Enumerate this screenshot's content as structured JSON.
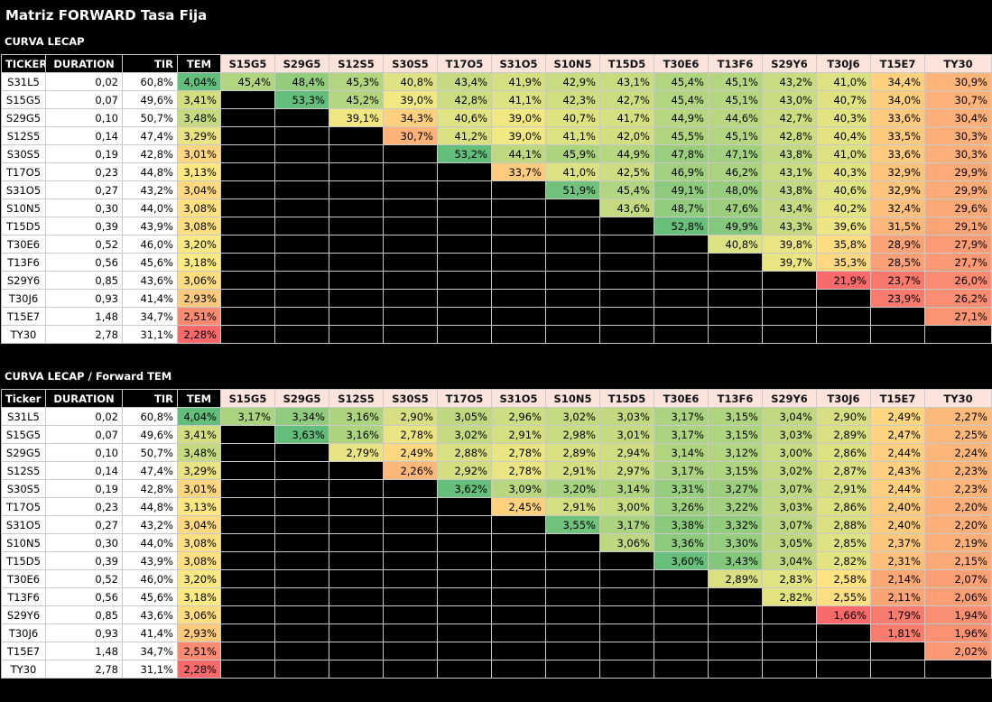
{
  "title": "Matriz FORWARD Tasa Fija",
  "columns": [
    "S15G5",
    "S29G5",
    "S12S5",
    "S30S5",
    "T17O5",
    "S31O5",
    "S10N5",
    "T15D5",
    "T30E6",
    "T13F6",
    "S29Y6",
    "T30J6",
    "T15E7",
    "TY30"
  ],
  "sections": [
    {
      "label": "CURVA LECAP",
      "headers": {
        "ticker": "TICKER",
        "duration": "DURATION",
        "tir": "TIR",
        "tem": "TEM"
      },
      "rows": [
        {
          "ticker": "S31L5",
          "duration": "0,02",
          "tir": "60,8%",
          "tem": "4,04%",
          "values": [
            "45,4%",
            "48,4%",
            "45,3%",
            "40,8%",
            "43,4%",
            "41,9%",
            "42,9%",
            "43,1%",
            "45,4%",
            "45,1%",
            "43,2%",
            "41,0%",
            "34,4%",
            "30,9%"
          ]
        },
        {
          "ticker": "S15G5",
          "duration": "0,07",
          "tir": "49,6%",
          "tem": "3,41%",
          "values": [
            "",
            "53,3%",
            "45,2%",
            "39,0%",
            "42,8%",
            "41,1%",
            "42,3%",
            "42,7%",
            "45,4%",
            "45,1%",
            "43,0%",
            "40,7%",
            "34,0%",
            "30,7%"
          ]
        },
        {
          "ticker": "S29G5",
          "duration": "0,10",
          "tir": "50,7%",
          "tem": "3,48%",
          "values": [
            "",
            "",
            "39,1%",
            "34,3%",
            "40,6%",
            "39,0%",
            "40,7%",
            "41,7%",
            "44,9%",
            "44,6%",
            "42,7%",
            "40,3%",
            "33,6%",
            "30,4%"
          ]
        },
        {
          "ticker": "S12S5",
          "duration": "0,14",
          "tir": "47,4%",
          "tem": "3,29%",
          "values": [
            "",
            "",
            "",
            "30,7%",
            "41,2%",
            "39,0%",
            "41,1%",
            "42,0%",
            "45,5%",
            "45,1%",
            "42,8%",
            "40,4%",
            "33,5%",
            "30,3%"
          ]
        },
        {
          "ticker": "S30S5",
          "duration": "0,19",
          "tir": "42,8%",
          "tem": "3,01%",
          "values": [
            "",
            "",
            "",
            "",
            "53,2%",
            "44,1%",
            "45,9%",
            "44,9%",
            "47,8%",
            "47,1%",
            "43,8%",
            "41,0%",
            "33,6%",
            "30,3%"
          ]
        },
        {
          "ticker": "T17O5",
          "duration": "0,23",
          "tir": "44,8%",
          "tem": "3,13%",
          "values": [
            "",
            "",
            "",
            "",
            "",
            "33,7%",
            "41,0%",
            "42,5%",
            "46,9%",
            "46,2%",
            "43,1%",
            "40,3%",
            "32,9%",
            "29,9%"
          ]
        },
        {
          "ticker": "S31O5",
          "duration": "0,27",
          "tir": "43,2%",
          "tem": "3,04%",
          "values": [
            "",
            "",
            "",
            "",
            "",
            "",
            "51,9%",
            "45,4%",
            "49,1%",
            "48,0%",
            "43,8%",
            "40,6%",
            "32,9%",
            "29,9%"
          ]
        },
        {
          "ticker": "S10N5",
          "duration": "0,30",
          "tir": "44,0%",
          "tem": "3,08%",
          "values": [
            "",
            "",
            "",
            "",
            "",
            "",
            "",
            "43,6%",
            "48,7%",
            "47,6%",
            "43,4%",
            "40,2%",
            "32,4%",
            "29,6%"
          ]
        },
        {
          "ticker": "T15D5",
          "duration": "0,39",
          "tir": "43,9%",
          "tem": "3,08%",
          "values": [
            "",
            "",
            "",
            "",
            "",
            "",
            "",
            "",
            "52,8%",
            "49,9%",
            "43,3%",
            "39,6%",
            "31,5%",
            "29,1%"
          ]
        },
        {
          "ticker": "T30E6",
          "duration": "0,52",
          "tir": "46,0%",
          "tem": "3,20%",
          "values": [
            "",
            "",
            "",
            "",
            "",
            "",
            "",
            "",
            "",
            "40,8%",
            "39,8%",
            "35,8%",
            "28,9%",
            "27,9%"
          ]
        },
        {
          "ticker": "T13F6",
          "duration": "0,56",
          "tir": "45,6%",
          "tem": "3,18%",
          "values": [
            "",
            "",
            "",
            "",
            "",
            "",
            "",
            "",
            "",
            "",
            "39,7%",
            "35,3%",
            "28,5%",
            "27,7%"
          ]
        },
        {
          "ticker": "S29Y6",
          "duration": "0,85",
          "tir": "43,6%",
          "tem": "3,06%",
          "values": [
            "",
            "",
            "",
            "",
            "",
            "",
            "",
            "",
            "",
            "",
            "",
            "21,9%",
            "23,7%",
            "26,0%"
          ]
        },
        {
          "ticker": "T30J6",
          "duration": "0,93",
          "tir": "41,4%",
          "tem": "2,93%",
          "values": [
            "",
            "",
            "",
            "",
            "",
            "",
            "",
            "",
            "",
            "",
            "",
            "",
            "23,9%",
            "26,2%"
          ]
        },
        {
          "ticker": "T15E7",
          "duration": "1,48",
          "tir": "34,7%",
          "tem": "2,51%",
          "values": [
            "",
            "",
            "",
            "",
            "",
            "",
            "",
            "",
            "",
            "",
            "",
            "",
            "",
            "27,1%"
          ]
        },
        {
          "ticker": "TY30",
          "duration": "2,78",
          "tir": "31,1%",
          "tem": "2,28%",
          "values": [
            "",
            "",
            "",
            "",
            "",
            "",
            "",
            "",
            "",
            "",
            "",
            "",
            "",
            ""
          ]
        }
      ]
    },
    {
      "label": "CURVA LECAP  / Forward TEM",
      "headers": {
        "ticker": "Ticker",
        "duration": "DURATION",
        "tir": "TIR",
        "tem": "TEM"
      },
      "rows": [
        {
          "ticker": "S31L5",
          "duration": "0,02",
          "tir": "60,8%",
          "tem": "4,04%",
          "values": [
            "3,17%",
            "3,34%",
            "3,16%",
            "2,90%",
            "3,05%",
            "2,96%",
            "3,02%",
            "3,03%",
            "3,17%",
            "3,15%",
            "3,04%",
            "2,90%",
            "2,49%",
            "2,27%"
          ]
        },
        {
          "ticker": "S15G5",
          "duration": "0,07",
          "tir": "49,6%",
          "tem": "3,41%",
          "values": [
            "",
            "3,63%",
            "3,16%",
            "2,78%",
            "3,02%",
            "2,91%",
            "2,98%",
            "3,01%",
            "3,17%",
            "3,15%",
            "3,03%",
            "2,89%",
            "2,47%",
            "2,25%"
          ]
        },
        {
          "ticker": "S29G5",
          "duration": "0,10",
          "tir": "50,7%",
          "tem": "3,48%",
          "values": [
            "",
            "",
            "2,79%",
            "2,49%",
            "2,88%",
            "2,78%",
            "2,89%",
            "2,94%",
            "3,14%",
            "3,12%",
            "3,00%",
            "2,86%",
            "2,44%",
            "2,24%"
          ]
        },
        {
          "ticker": "S12S5",
          "duration": "0,14",
          "tir": "47,4%",
          "tem": "3,29%",
          "values": [
            "",
            "",
            "",
            "2,26%",
            "2,92%",
            "2,78%",
            "2,91%",
            "2,97%",
            "3,17%",
            "3,15%",
            "3,02%",
            "2,87%",
            "2,43%",
            "2,23%"
          ]
        },
        {
          "ticker": "S30S5",
          "duration": "0,19",
          "tir": "42,8%",
          "tem": "3,01%",
          "values": [
            "",
            "",
            "",
            "",
            "3,62%",
            "3,09%",
            "3,20%",
            "3,14%",
            "3,31%",
            "3,27%",
            "3,07%",
            "2,91%",
            "2,44%",
            "2,23%"
          ]
        },
        {
          "ticker": "T17O5",
          "duration": "0,23",
          "tir": "44,8%",
          "tem": "3,13%",
          "values": [
            "",
            "",
            "",
            "",
            "",
            "2,45%",
            "2,91%",
            "3,00%",
            "3,26%",
            "3,22%",
            "3,03%",
            "2,86%",
            "2,40%",
            "2,20%"
          ]
        },
        {
          "ticker": "S31O5",
          "duration": "0,27",
          "tir": "43,2%",
          "tem": "3,04%",
          "values": [
            "",
            "",
            "",
            "",
            "",
            "",
            "3,55%",
            "3,17%",
            "3,38%",
            "3,32%",
            "3,07%",
            "2,88%",
            "2,40%",
            "2,20%"
          ]
        },
        {
          "ticker": "S10N5",
          "duration": "0,30",
          "tir": "44,0%",
          "tem": "3,08%",
          "values": [
            "",
            "",
            "",
            "",
            "",
            "",
            "",
            "3,06%",
            "3,36%",
            "3,30%",
            "3,05%",
            "2,85%",
            "2,37%",
            "2,19%"
          ]
        },
        {
          "ticker": "T15D5",
          "duration": "0,39",
          "tir": "43,9%",
          "tem": "3,08%",
          "values": [
            "",
            "",
            "",
            "",
            "",
            "",
            "",
            "",
            "3,60%",
            "3,43%",
            "3,04%",
            "2,82%",
            "2,31%",
            "2,15%"
          ]
        },
        {
          "ticker": "T30E6",
          "duration": "0,52",
          "tir": "46,0%",
          "tem": "3,20%",
          "values": [
            "",
            "",
            "",
            "",
            "",
            "",
            "",
            "",
            "",
            "2,89%",
            "2,83%",
            "2,58%",
            "2,14%",
            "2,07%"
          ]
        },
        {
          "ticker": "T13F6",
          "duration": "0,56",
          "tir": "45,6%",
          "tem": "3,18%",
          "values": [
            "",
            "",
            "",
            "",
            "",
            "",
            "",
            "",
            "",
            "",
            "2,82%",
            "2,55%",
            "2,11%",
            "2,06%"
          ]
        },
        {
          "ticker": "S29Y6",
          "duration": "0,85",
          "tir": "43,6%",
          "tem": "3,06%",
          "values": [
            "",
            "",
            "",
            "",
            "",
            "",
            "",
            "",
            "",
            "",
            "",
            "1,66%",
            "1,79%",
            "1,94%"
          ]
        },
        {
          "ticker": "T30J6",
          "duration": "0,93",
          "tir": "41,4%",
          "tem": "2,93%",
          "values": [
            "",
            "",
            "",
            "",
            "",
            "",
            "",
            "",
            "",
            "",
            "",
            "",
            "1,81%",
            "1,96%"
          ]
        },
        {
          "ticker": "T15E7",
          "duration": "1,48",
          "tir": "34,7%",
          "tem": "2,51%",
          "values": [
            "",
            "",
            "",
            "",
            "",
            "",
            "",
            "",
            "",
            "",
            "",
            "",
            "",
            "2,02%"
          ]
        },
        {
          "ticker": "TY30",
          "duration": "2,78",
          "tir": "31,1%",
          "tem": "2,28%",
          "values": [
            "",
            "",
            "",
            "",
            "",
            "",
            "",
            "",
            "",
            "",
            "",
            "",
            "",
            ""
          ]
        }
      ]
    }
  ],
  "colors": {
    "scale_low": "#f8696b",
    "scale_mid": "#ffeb84",
    "scale_high": "#63be7b",
    "header_fill": "#fce4dc",
    "background": "#000000"
  }
}
